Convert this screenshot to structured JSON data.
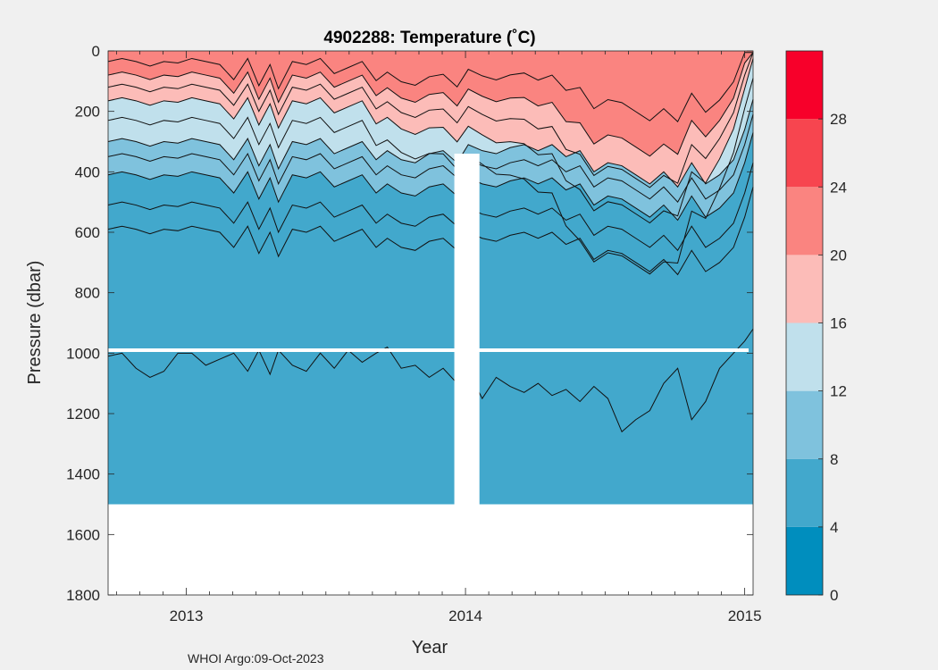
{
  "chart_data": {
    "type": "contour",
    "title": "4902288:  Temperature (˚C)",
    "xlabel": "Year",
    "ylabel": "Pressure (dbar)",
    "footer": "WHOI Argo:09-Oct-2023",
    "x_start_year": 2012.72,
    "x_end_year": 2015.03,
    "x_ticks": [
      {
        "value": 2013.0,
        "label": "2013"
      },
      {
        "value": 2014.0,
        "label": "2014"
      },
      {
        "value": 2015.0,
        "label": "2015"
      }
    ],
    "y_range": [
      0,
      1800
    ],
    "y_ticks": [
      0,
      200,
      400,
      600,
      800,
      1000,
      1200,
      1400,
      1600,
      1800
    ],
    "y_tick_labels": [
      "0",
      "200",
      "400",
      "600",
      "800",
      "1000",
      "1200",
      "1400",
      "1600",
      "1800"
    ],
    "colorbar": {
      "range": [
        0,
        32
      ],
      "tick_values": [
        0,
        4,
        8,
        12,
        16,
        20,
        24,
        28
      ],
      "tick_labels": [
        "0",
        "4",
        "8",
        "12",
        "16",
        "20",
        "24",
        "28"
      ],
      "bands": [
        {
          "from": 0,
          "to": 4,
          "color": "#008ebe"
        },
        {
          "from": 4,
          "to": 8,
          "color": "#42a8cc"
        },
        {
          "from": 8,
          "to": 12,
          "color": "#7fc2dd"
        },
        {
          "from": 12,
          "to": 16,
          "color": "#c0e0ec"
        },
        {
          "from": 16,
          "to": 20,
          "color": "#fcbcb8"
        },
        {
          "from": 20,
          "to": 24,
          "color": "#fa8480"
        },
        {
          "from": 24,
          "to": 28,
          "color": "#f7454f"
        },
        {
          "from": 28,
          "to": 32,
          "color": "#f7002a"
        }
      ]
    },
    "contour_levels": [
      22,
      20,
      18,
      16,
      14,
      12,
      10,
      8,
      6,
      5
    ],
    "profile_times": [
      2012.72,
      2012.77,
      2012.82,
      2012.87,
      2012.92,
      2012.97,
      2013.02,
      2013.07,
      2013.12,
      2013.17,
      2013.22,
      2013.26,
      2013.3,
      2013.33,
      2013.38,
      2013.43,
      2013.48,
      2013.53,
      2013.58,
      2013.63,
      2013.68,
      2013.72,
      2013.77,
      2013.82,
      2013.87,
      2013.92,
      2013.97,
      2014.01,
      2014.06,
      2014.11,
      2014.16,
      2014.21,
      2014.26,
      2014.31,
      2014.36,
      2014.41,
      2014.46,
      2014.51,
      2014.56,
      2014.61,
      2014.66,
      2014.71,
      2014.76,
      2014.81,
      2014.86,
      2014.91,
      2014.96,
      2015.0,
      2015.03
    ],
    "depth_offset_dbar": [
      0,
      -10,
      0,
      15,
      0,
      5,
      -10,
      0,
      10,
      60,
      -10,
      80,
      10,
      90,
      0,
      10,
      -10,
      40,
      20,
      0,
      60,
      30,
      60,
      70,
      40,
      30,
      70,
      10,
      30,
      40,
      20,
      10,
      30,
      10,
      50,
      30,
      100,
      70,
      80,
      110,
      140,
      100,
      150,
      70,
      140,
      110,
      60,
      -40,
      -140
    ],
    "warm_layer_scale": [
      1.0,
      1.0,
      1.0,
      1.0,
      1.0,
      1.0,
      1.0,
      1.0,
      1.0,
      1.0,
      1.0,
      1.0,
      1.0,
      1.0,
      1.0,
      1.0,
      1.0,
      1.0,
      1.0,
      1.0,
      1.1,
      1.15,
      1.2,
      1.25,
      1.3,
      1.35,
      1.4,
      1.45,
      1.5,
      1.6,
      1.7,
      1.8,
      1.9,
      2.0,
      2.3,
      2.6,
      2.6,
      2.6,
      2.6,
      2.6,
      2.6,
      2.6,
      2.4,
      2.0,
      1.8,
      1.5,
      1.2,
      1.0,
      1.0
    ],
    "base_isotherm_depths_dbar": [
      35,
      80,
      120,
      165,
      230,
      300,
      350,
      410,
      510,
      590
    ],
    "deep_isotherm_dbar": [
      1010,
      1000,
      1050,
      1080,
      1060,
      1000,
      1000,
      1040,
      1020,
      1000,
      1060,
      990,
      1070,
      990,
      1040,
      1060,
      1000,
      1050,
      990,
      1030,
      1000,
      980,
      1050,
      1040,
      1080,
      1050,
      1100,
      1060,
      1150,
      1080,
      1110,
      1130,
      1100,
      1140,
      1120,
      1160,
      1110,
      1150,
      1260,
      1220,
      1190,
      1100,
      1050,
      1220,
      1160,
      1050,
      1000,
      960,
      920
    ],
    "max_depth_dbar": 1500,
    "gap_region": {
      "from": 2013.96,
      "to": 2014.05,
      "top_dbar": 340
    },
    "missing_level_dbar": 990
  }
}
